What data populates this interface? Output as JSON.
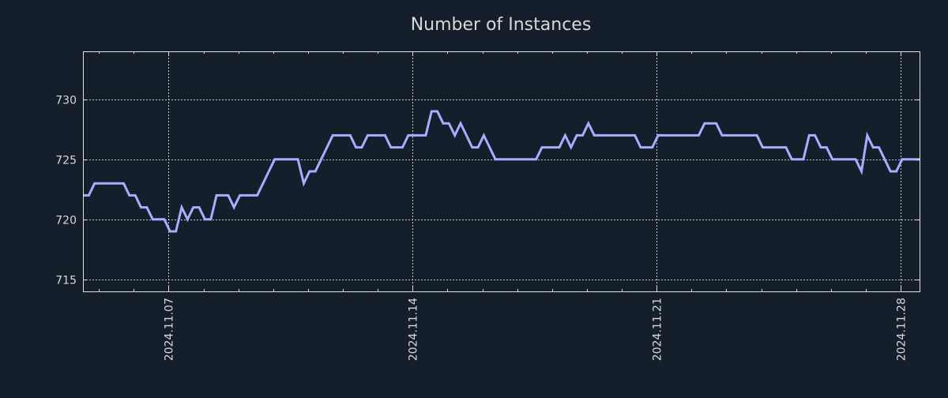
{
  "chart_data": {
    "type": "line",
    "title": "Number of Instances",
    "xlabel": "",
    "ylabel": "",
    "x_start": "2024-11-04 13:00",
    "step_hours": 4,
    "xlim": [
      "2024-11-04 13:00",
      "2024-11-28 13:00"
    ],
    "ylim": [
      714,
      734
    ],
    "yticks": [
      715,
      720,
      725,
      730
    ],
    "xticks": [
      {
        "label": "2024.11.07",
        "day": 7
      },
      {
        "label": "2024.11.14",
        "day": 14
      },
      {
        "label": "2024.11.21",
        "day": 21
      },
      {
        "label": "2024.11.28",
        "day": 28
      }
    ],
    "grid": true,
    "series": [
      {
        "name": "Number of Instances",
        "color": "#a9acff",
        "values": [
          722,
          722,
          723,
          723,
          723,
          723,
          723,
          723,
          722,
          722,
          721,
          721,
          720,
          720,
          720,
          719,
          719,
          721,
          720,
          721,
          721,
          720,
          720,
          722,
          722,
          722,
          721,
          722,
          722,
          722,
          722,
          723,
          724,
          725,
          725,
          725,
          725,
          725,
          723,
          724,
          724,
          725,
          726,
          727,
          727,
          727,
          727,
          726,
          726,
          727,
          727,
          727,
          727,
          726,
          726,
          726,
          727,
          727,
          727,
          727,
          729,
          729,
          728,
          728,
          727,
          728,
          727,
          726,
          726,
          727,
          726,
          725,
          725,
          725,
          725,
          725,
          725,
          725,
          725,
          726,
          726,
          726,
          726,
          727,
          726,
          727,
          727,
          728,
          727,
          727,
          727,
          727,
          727,
          727,
          727,
          727,
          726,
          726,
          726,
          727,
          727,
          727,
          727,
          727,
          727,
          727,
          727,
          728,
          728,
          728,
          727,
          727,
          727,
          727,
          727,
          727,
          727,
          726,
          726,
          726,
          726,
          726,
          725,
          725,
          725,
          727,
          727,
          726,
          726,
          725,
          725,
          725,
          725,
          725,
          724,
          727,
          726,
          726,
          725,
          724,
          724,
          725,
          725,
          725,
          725
        ]
      }
    ],
    "colors": {
      "background": "#151f2c",
      "axes": "#e0e0e0",
      "grid": "#c8c8c8",
      "text": "#d8d8d8"
    }
  }
}
